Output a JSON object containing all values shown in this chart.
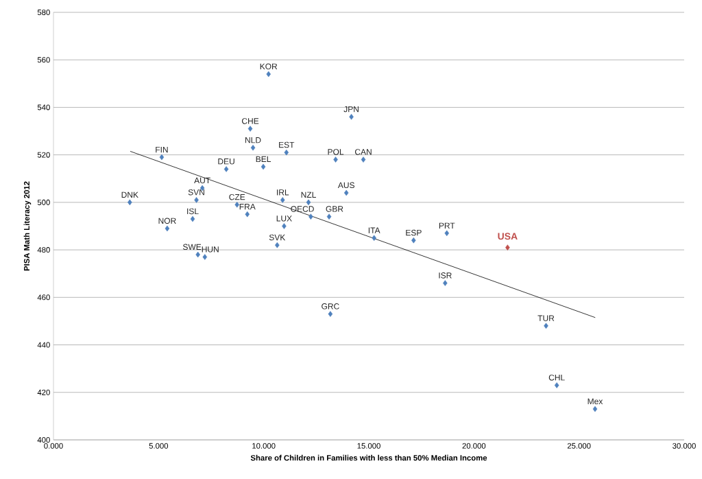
{
  "chart_data": {
    "type": "scatter",
    "xlabel": "Share of Children in Families with less than 50% Median Income",
    "ylabel": "PISA Math Literacy 2012",
    "xlim": [
      0,
      30
    ],
    "xticks": [
      {
        "value": 0,
        "label": "0.000"
      },
      {
        "value": 5,
        "label": "5.000"
      },
      {
        "value": 10,
        "label": "10.000"
      },
      {
        "value": 15,
        "label": "15.000"
      },
      {
        "value": 20,
        "label": "20.000"
      },
      {
        "value": 25,
        "label": "25.000"
      },
      {
        "value": 30,
        "label": "30.000"
      }
    ],
    "ylim": [
      400,
      580
    ],
    "yticks": [
      400,
      420,
      440,
      460,
      480,
      500,
      520,
      540,
      560,
      580
    ],
    "grid": "y",
    "marker": "diamond",
    "series": [
      {
        "color": "#4f81bd",
        "x": [
          10.23,
          14.17,
          9.36,
          9.49,
          5.15,
          11.08,
          13.42,
          14.74,
          8.22,
          9.98,
          7.08,
          13.93,
          3.63,
          6.8,
          8.73,
          10.9,
          12.13,
          9.22,
          6.62,
          12.24,
          13.11,
          10.97,
          5.41,
          10.64,
          6.87,
          7.2,
          15.25,
          13.17,
          17.13,
          18.71,
          18.63,
          23.43,
          23.94,
          25.76
        ],
        "values": [
          554,
          536,
          531,
          523,
          519,
          521,
          518,
          518,
          514,
          515,
          506,
          504,
          500,
          501,
          499,
          501,
          500,
          495,
          493,
          494,
          494,
          490,
          489,
          482,
          478,
          477,
          485,
          453,
          484,
          487,
          466,
          448,
          423,
          413
        ]
      },
      {
        "name": "USA",
        "color": "#c0504d",
        "x": [
          21.6
        ],
        "values": [
          481
        ]
      },
      {
        "type": "line",
        "marker": "none",
        "color": "#000000",
        "x": [
          3.65,
          25.77
        ],
        "values": [
          521.5,
          451.5
        ]
      }
    ],
    "annotations": [
      {
        "text": "KOR",
        "x": 10.23,
        "y": 554
      },
      {
        "text": "JPN",
        "x": 14.17,
        "y": 536
      },
      {
        "text": "CHE",
        "x": 9.36,
        "y": 531
      },
      {
        "text": "NLD",
        "x": 9.49,
        "y": 523
      },
      {
        "text": "FIN",
        "x": 5.15,
        "y": 519
      },
      {
        "text": "EST",
        "x": 11.08,
        "y": 521
      },
      {
        "text": "POL",
        "x": 13.42,
        "y": 518
      },
      {
        "text": "CAN",
        "x": 14.74,
        "y": 518
      },
      {
        "text": "DEU",
        "x": 8.22,
        "y": 514
      },
      {
        "text": "BEL",
        "x": 9.98,
        "y": 515
      },
      {
        "text": "AUT",
        "x": 7.08,
        "y": 506
      },
      {
        "text": "AUS",
        "x": 13.93,
        "y": 504
      },
      {
        "text": "DNK",
        "x": 3.63,
        "y": 500
      },
      {
        "text": "SVN",
        "x": 6.8,
        "y": 501
      },
      {
        "text": "CZE",
        "x": 8.73,
        "y": 499
      },
      {
        "text": "IRL",
        "x": 10.9,
        "y": 501
      },
      {
        "text": "NZL",
        "x": 12.13,
        "y": 500
      },
      {
        "text": "FRA",
        "x": 9.22,
        "y": 495
      },
      {
        "text": "ISL",
        "x": 6.62,
        "y": 493
      },
      {
        "text": "OECD",
        "x": 12.24,
        "y": 494
      },
      {
        "text": "GBR",
        "x": 13.11,
        "y": 494
      },
      {
        "text": "LUX",
        "x": 10.97,
        "y": 490
      },
      {
        "text": "NOR",
        "x": 5.41,
        "y": 489
      },
      {
        "text": "SVK",
        "x": 10.64,
        "y": 482
      },
      {
        "text": "SWE",
        "x": 6.87,
        "y": 478
      },
      {
        "text": "HUN",
        "x": 7.2,
        "y": 477
      },
      {
        "text": "ITA",
        "x": 15.25,
        "y": 485
      },
      {
        "text": "GRC",
        "x": 13.17,
        "y": 453
      },
      {
        "text": "ESP",
        "x": 17.13,
        "y": 484
      },
      {
        "text": "PRT",
        "x": 18.71,
        "y": 487
      },
      {
        "text": "ISR",
        "x": 18.63,
        "y": 466
      },
      {
        "text": "TUR",
        "x": 23.43,
        "y": 448
      },
      {
        "text": "CHL",
        "x": 23.94,
        "y": 423
      },
      {
        "text": "Mex",
        "x": 25.76,
        "y": 413
      }
    ]
  }
}
